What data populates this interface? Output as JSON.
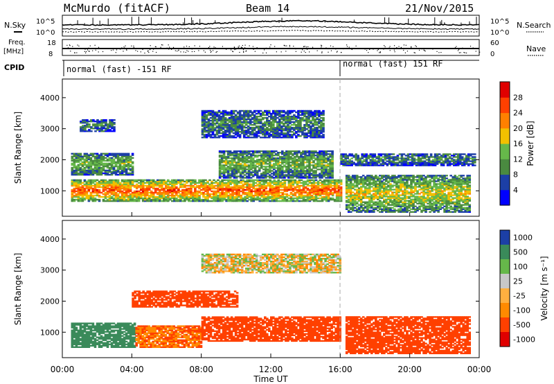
{
  "header": {
    "station": "McMurdo (fitACF)",
    "beam": "Beam 14",
    "date": "21/Nov/2015"
  },
  "top_panel": {
    "left_label_1": "N.Sky",
    "left_label_2a": "Freq.",
    "left_label_2b": "[MHz]",
    "left_label_3": "CPID",
    "right_label_1": "N.Search",
    "right_label_2": "Nave",
    "nsky_tick_top": "10^5",
    "nsky_tick_bottom": "10^0",
    "freq_tick_top": "18",
    "freq_tick_bottom": "8",
    "nave_tick_top": "60",
    "nave_tick_bottom": "0",
    "cpid_left": "normal (fast) -151 RF",
    "cpid_right": "normal (fast) 151 RF"
  },
  "colors": {
    "power": [
      "#0000ff",
      "#1c3fa6",
      "#4a8a40",
      "#66b84a",
      "#f2c000",
      "#ff8000",
      "#ff4000",
      "#e00000"
    ],
    "velocity": [
      "#e00000",
      "#ff4000",
      "#ff8a00",
      "#ffb040",
      "#c8c8c8",
      "#66b84a",
      "#3a8a5a",
      "#1c3fa6"
    ]
  },
  "chart_data": [
    {
      "type": "heatmap",
      "panel": "power",
      "ylabel": "Slant Range [km]",
      "xlabel": "",
      "xlim": [
        0,
        24
      ],
      "ylim": [
        180,
        4600
      ],
      "yticks": [
        "1000",
        "2000",
        "3000",
        "4000"
      ],
      "colorbar_label": "Power [dB]",
      "colorbar_ticks": [
        "4",
        "8",
        "12",
        "16",
        "20",
        "24",
        "28"
      ],
      "bands": [
        {
          "t": [
            0.5,
            16
          ],
          "range": [
            650,
            1350
          ],
          "level": 6
        },
        {
          "t": [
            0.5,
            4
          ],
          "range": [
            1500,
            2200
          ],
          "level": 3
        },
        {
          "t": [
            1,
            3
          ],
          "range": [
            2900,
            3300
          ],
          "level": 2
        },
        {
          "t": [
            9,
            15.5
          ],
          "range": [
            1400,
            2300
          ],
          "level": 3
        },
        {
          "t": [
            8,
            15
          ],
          "range": [
            2700,
            3600
          ],
          "level": 2
        },
        {
          "t": [
            16.3,
            23.5
          ],
          "range": [
            300,
            1500
          ],
          "level": 4
        },
        {
          "t": [
            16,
            23.8
          ],
          "range": [
            1800,
            2200
          ],
          "level": 2
        }
      ]
    },
    {
      "type": "heatmap",
      "panel": "velocity",
      "ylabel": "Slant Range [km]",
      "xlabel": "Time UT",
      "xlim": [
        0,
        24
      ],
      "ylim": [
        180,
        4600
      ],
      "yticks": [
        "1000",
        "2000",
        "3000",
        "4000"
      ],
      "xticks": [
        "00:00",
        "04:00",
        "08:00",
        "12:00",
        "16:00",
        "20:00",
        "00:00"
      ],
      "colorbar_label": "Velocity [m s⁻¹]",
      "colorbar_ticks": [
        "1000",
        "500",
        "100",
        "25",
        "-25",
        "-100",
        "-500",
        "-1000"
      ],
      "bands": [
        {
          "t": [
            0.5,
            4.2
          ],
          "range": [
            500,
            1300
          ],
          "value": 250
        },
        {
          "t": [
            4.2,
            8
          ],
          "range": [
            500,
            1200
          ],
          "value": -100
        },
        {
          "t": [
            8,
            16
          ],
          "range": [
            700,
            1500
          ],
          "value": -300
        },
        {
          "t": [
            16.3,
            23.5
          ],
          "range": [
            300,
            1500
          ],
          "value": -200
        },
        {
          "t": [
            4,
            10
          ],
          "range": [
            1800,
            2300
          ],
          "value": -250
        },
        {
          "t": [
            8,
            16
          ],
          "range": [
            2900,
            3500
          ],
          "value": 0
        }
      ]
    }
  ]
}
